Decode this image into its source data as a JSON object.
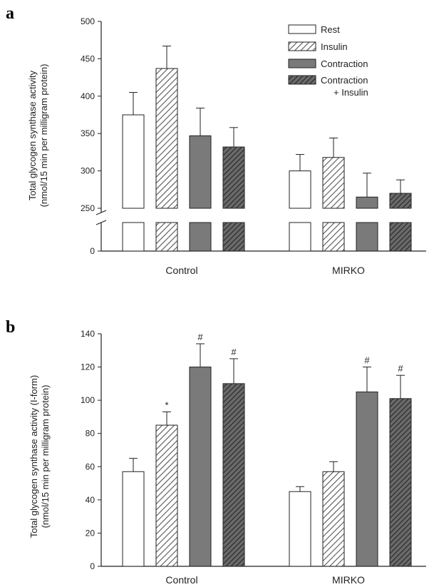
{
  "chart_data": [
    {
      "panel_label": "a",
      "type": "bar",
      "categories": [
        "Control",
        "MIRKO"
      ],
      "ylabel_lines": [
        "Total glycogen synthase activity",
        "(nmol/15 min per milligram protein)"
      ],
      "yticks": [
        "0",
        "250",
        "300",
        "350",
        "400",
        "450",
        "500"
      ],
      "axis_break": [
        0,
        250
      ],
      "ylim": [
        250,
        500
      ],
      "series": [
        {
          "name": "Rest",
          "pattern": "open",
          "values": [
            375,
            300
          ],
          "errors": [
            30,
            22
          ]
        },
        {
          "name": "Insulin",
          "pattern": "light-hatch",
          "values": [
            437,
            318
          ],
          "errors": [
            30,
            26
          ]
        },
        {
          "name": "Contraction",
          "pattern": "solid-gray",
          "values": [
            347,
            265
          ],
          "errors": [
            37,
            32
          ]
        },
        {
          "name": "Contraction\n+ Insulin",
          "pattern": "dark-hatch",
          "values": [
            332,
            270
          ],
          "errors": [
            26,
            18
          ]
        }
      ],
      "legend_position": "top-right"
    },
    {
      "panel_label": "b",
      "type": "bar",
      "categories": [
        "Control",
        "MIRKO"
      ],
      "ylabel_lines": [
        "Total glycogen synthase activity (I-form)",
        "(nmol/15 min per milligram protein)"
      ],
      "yticks": [
        "0",
        "20",
        "40",
        "60",
        "80",
        "100",
        "120",
        "140"
      ],
      "ylim": [
        0,
        140
      ],
      "series": [
        {
          "name": "Rest",
          "pattern": "open",
          "values": [
            57,
            45
          ],
          "errors": [
            8,
            3
          ],
          "marks": [
            "",
            ""
          ]
        },
        {
          "name": "Insulin",
          "pattern": "light-hatch",
          "values": [
            85,
            57
          ],
          "errors": [
            8,
            6
          ],
          "marks": [
            "*",
            ""
          ]
        },
        {
          "name": "Contraction",
          "pattern": "solid-gray",
          "values": [
            120,
            105
          ],
          "errors": [
            14,
            15
          ],
          "marks": [
            "#",
            "#"
          ]
        },
        {
          "name": "Contraction\n+ Insulin",
          "pattern": "dark-hatch",
          "values": [
            110,
            101
          ],
          "errors": [
            15,
            14
          ],
          "marks": [
            "#",
            "#"
          ]
        }
      ]
    }
  ]
}
